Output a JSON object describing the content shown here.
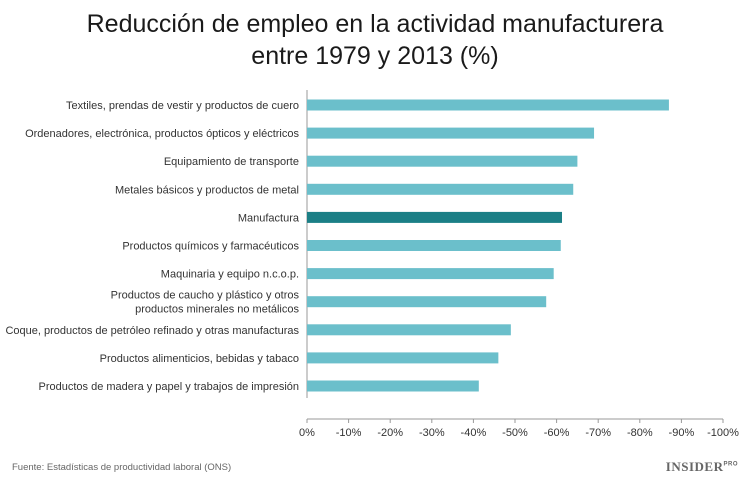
{
  "title_line1": "Reducción de empleo en la actividad manufacturera",
  "title_line2": "entre 1979 y 2013 (%)",
  "source": "Fuente: Estadísticas de productividad laboral (ONS)",
  "logo": {
    "main": "INSIDER",
    "sup": "PRO"
  },
  "chart_data": {
    "type": "bar",
    "orientation": "horizontal",
    "title": "Reducción de empleo en la actividad manufacturera entre 1979 y 2013 (%)",
    "categories": [
      [
        "Textiles, prendas de vestir y productos de cuero"
      ],
      [
        "Ordenadores, electrónica, productos ópticos y eléctricos"
      ],
      [
        "Equipamiento de transporte"
      ],
      [
        "Metales básicos y productos de metal"
      ],
      [
        "Manufactura"
      ],
      [
        "Productos químicos y farmacéuticos"
      ],
      [
        "Maquinaria y equipo n.c.o.p."
      ],
      [
        "Productos de caucho y plástico y otros",
        "productos minerales no metálicos"
      ],
      [
        "Coque, productos de petróleo refinado y otras manufacturas"
      ],
      [
        "Productos alimenticios, bebidas y tabaco"
      ],
      [
        "Productos de madera y papel y trabajos de impresión"
      ]
    ],
    "values": [
      -87,
      -69,
      -65,
      -64,
      -61.3,
      -61,
      -59.3,
      -57.5,
      -49,
      -46,
      -41.3
    ],
    "highlight_index": 4,
    "xlim": [
      0,
      -100
    ],
    "xticks": [
      "0%",
      "-10%",
      "-20%",
      "-30%",
      "-40%",
      "-50%",
      "-60%",
      "-70%",
      "-80%",
      "-90%",
      "-100%"
    ],
    "grid": false,
    "colors": {
      "bar": "#6bbfcb",
      "highlight": "#1b7f86",
      "axis": "#999999"
    }
  }
}
